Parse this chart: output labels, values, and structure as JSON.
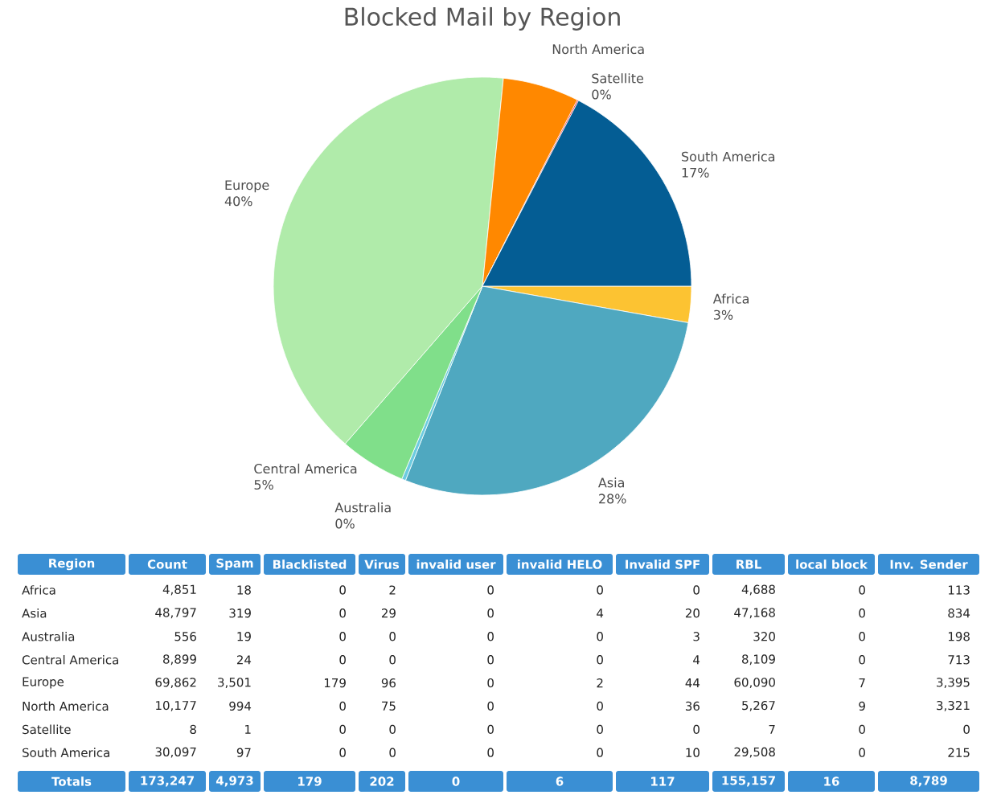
{
  "chart_data": [
    {
      "type": "pie",
      "title": "Blocked Mail by Region",
      "categories": [
        "Africa",
        "Asia",
        "Australia",
        "Central America",
        "Europe",
        "North America",
        "Satellite",
        "South America"
      ],
      "values": [
        2.8,
        28.2,
        0.3,
        5.1,
        40.2,
        5.9,
        0.1,
        17.4
      ],
      "colors": [
        "#fcc332",
        "#4fa8c0",
        "#6ccbe0",
        "#80df8a",
        "#b0ebaa",
        "#ff8800",
        "#ee1111",
        "#045d94"
      ],
      "value_labels": [
        "3%",
        "28%",
        "0%",
        "5%",
        "40%",
        null,
        "0%",
        "17%"
      ]
    },
    {
      "type": "other",
      "categories": [
        "Region",
        "Count",
        "Spam",
        "Blacklisted",
        "Virus",
        "invalid user",
        "invalid HELO",
        "Invalid SPF",
        "RBL",
        "local block",
        "Inv. Sender"
      ],
      "y_categories": [
        "Africa",
        "Asia",
        "Australia",
        "Central America",
        "Europe",
        "North America",
        "Satellite",
        "South America",
        "Totals"
      ],
      "cell_labels": [
        [
          "4,851",
          "18",
          "0",
          "2",
          "0",
          "0",
          "0",
          "4,688",
          "0",
          "113"
        ],
        [
          "48,797",
          "319",
          "0",
          "29",
          "0",
          "4",
          "20",
          "47,168",
          "0",
          "834"
        ],
        [
          "556",
          "19",
          "0",
          "0",
          "0",
          "0",
          "3",
          "320",
          "0",
          "198"
        ],
        [
          "8,899",
          "24",
          "0",
          "0",
          "0",
          "0",
          "4",
          "8,109",
          "0",
          "713"
        ],
        [
          "69,862",
          "3,501",
          "179",
          "96",
          "0",
          "2",
          "44",
          "60,090",
          "7",
          "3,395"
        ],
        [
          "10,177",
          "994",
          "0",
          "75",
          "0",
          "0",
          "36",
          "5,267",
          "9",
          "3,321"
        ],
        [
          "8",
          "1",
          "0",
          "0",
          "0",
          "0",
          "0",
          "7",
          "0",
          "0"
        ],
        [
          "30,097",
          "97",
          "0",
          "0",
          "0",
          "0",
          "10",
          "29,508",
          "0",
          "215"
        ],
        [
          "173,247",
          "4,973",
          "179",
          "202",
          "0",
          "6",
          "117",
          "155,157",
          "16",
          "8,789"
        ]
      ]
    }
  ]
}
